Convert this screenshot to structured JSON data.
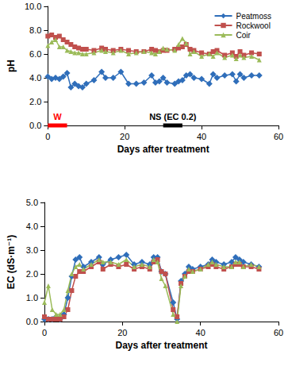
{
  "chart_data": [
    {
      "type": "line",
      "x_label": "Days after treatment",
      "y_label": "pH",
      "xlim": [
        0,
        60
      ],
      "xticks": [
        0,
        20,
        40,
        60
      ],
      "ylim": [
        0,
        10
      ],
      "yticks": [
        {
          "value": 0,
          "label": "0.0"
        },
        {
          "value": 2,
          "label": "2.0"
        },
        {
          "value": 4,
          "label": "4.0"
        },
        {
          "value": 6,
          "label": "6.0"
        },
        {
          "value": 8,
          "label": "8.0"
        },
        {
          "value": 10,
          "label": "10.0"
        }
      ],
      "grid": false,
      "legend": "upper right",
      "x": [
        0,
        1,
        2,
        3,
        4,
        5,
        6,
        7,
        8,
        9,
        10,
        12,
        14,
        15,
        17,
        19,
        21,
        23,
        25,
        27,
        28,
        29,
        30,
        31,
        33,
        34,
        35,
        36,
        37,
        38,
        40,
        42,
        43,
        44,
        46,
        48,
        49,
        50,
        51,
        53,
        55
      ],
      "series": [
        {
          "name": "Peatmoss",
          "color": "#2f6eba",
          "marker": "diamond",
          "values": [
            4.1,
            3.9,
            4.0,
            3.9,
            4.1,
            4.4,
            3.2,
            3.5,
            3.3,
            3.2,
            3.5,
            3.8,
            4.5,
            4.0,
            4.0,
            4.5,
            3.5,
            3.5,
            3.6,
            4.2,
            3.6,
            3.7,
            4.0,
            3.6,
            3.5,
            3.7,
            3.8,
            4.2,
            4.3,
            4.0,
            3.9,
            3.5,
            4.3,
            4.0,
            4.2,
            4.3,
            3.7,
            4.3,
            4.0,
            4.2,
            4.2
          ]
        },
        {
          "name": "Rockwool",
          "color": "#c0504d",
          "marker": "square",
          "values": [
            7.5,
            7.6,
            7.4,
            7.5,
            7.2,
            7.0,
            6.8,
            6.6,
            6.5,
            6.4,
            6.4,
            6.3,
            6.5,
            6.4,
            6.3,
            6.4,
            6.3,
            6.2,
            6.2,
            6.4,
            6.3,
            6.2,
            6.3,
            6.3,
            6.4,
            6.5,
            6.6,
            6.8,
            6.4,
            6.3,
            6.1,
            6.0,
            6.2,
            6.3,
            5.9,
            6.1,
            5.8,
            6.2,
            5.9,
            6.1,
            6.0
          ]
        },
        {
          "name": "Coir",
          "color": "#9bbb59",
          "marker": "triangle",
          "values": [
            6.7,
            7.0,
            7.2,
            6.6,
            6.6,
            6.3,
            6.2,
            6.1,
            6.1,
            6.0,
            6.0,
            6.1,
            6.3,
            6.2,
            6.1,
            6.3,
            6.0,
            6.1,
            6.2,
            6.1,
            6.0,
            6.2,
            6.5,
            6.4,
            6.3,
            6.8,
            7.3,
            6.9,
            6.0,
            6.2,
            5.8,
            6.0,
            5.8,
            6.1,
            5.7,
            5.9,
            5.6,
            5.9,
            5.7,
            5.8,
            5.5
          ]
        }
      ],
      "annotations": [
        {
          "text": "W",
          "x": [
            0,
            5
          ],
          "y": 0,
          "color": "#ff0000"
        },
        {
          "text": "NS (EC 0.2)",
          "x": [
            30,
            35
          ],
          "y": 0,
          "color": "#000000"
        }
      ]
    },
    {
      "type": "line",
      "x_label": "Days after treatment",
      "y_label": "EC (dS·m⁻¹)",
      "xlim": [
        0,
        60
      ],
      "xticks": [
        0,
        20,
        40,
        60
      ],
      "ylim": [
        0,
        5
      ],
      "yticks": [
        {
          "value": 0,
          "label": "0.0"
        },
        {
          "value": 1,
          "label": "1.0"
        },
        {
          "value": 2,
          "label": "2.0"
        },
        {
          "value": 3,
          "label": "3.0"
        },
        {
          "value": 4,
          "label": "4.0"
        },
        {
          "value": 5,
          "label": "5.0"
        }
      ],
      "grid": false,
      "x": [
        0,
        1,
        2,
        3,
        4,
        5,
        6,
        7,
        8,
        9,
        10,
        12,
        14,
        15,
        17,
        19,
        21,
        23,
        25,
        27,
        28,
        29,
        30,
        31,
        33,
        34,
        35,
        36,
        37,
        38,
        40,
        42,
        43,
        44,
        46,
        48,
        49,
        50,
        51,
        53,
        55
      ],
      "series": [
        {
          "name": "Peatmoss",
          "color": "#2f6eba",
          "marker": "diamond",
          "values": [
            0.1,
            0.1,
            0.1,
            0.2,
            0.1,
            0.3,
            1.0,
            1.9,
            2.6,
            2.7,
            2.3,
            2.5,
            2.7,
            2.4,
            2.6,
            2.7,
            2.8,
            2.4,
            2.5,
            2.4,
            2.7,
            2.7,
            2.1,
            2.0,
            0.8,
            0.1,
            1.7,
            2.0,
            2.3,
            2.2,
            2.3,
            2.4,
            2.6,
            2.5,
            2.4,
            2.5,
            2.7,
            2.6,
            2.5,
            2.4,
            2.3
          ]
        },
        {
          "name": "Rockwool",
          "color": "#c0504d",
          "marker": "square",
          "values": [
            0.2,
            0.1,
            0.1,
            0.1,
            0.1,
            0.2,
            0.5,
            1.3,
            1.9,
            2.1,
            2.1,
            2.3,
            2.5,
            2.2,
            2.4,
            2.3,
            2.4,
            2.2,
            2.3,
            2.2,
            2.5,
            2.6,
            2.1,
            2.0,
            0.5,
            0.2,
            1.6,
            1.9,
            2.1,
            2.1,
            2.2,
            2.3,
            2.4,
            2.3,
            2.2,
            2.3,
            2.4,
            2.4,
            2.3,
            2.3,
            2.2
          ]
        },
        {
          "name": "Coir",
          "color": "#9bbb59",
          "marker": "triangle",
          "values": [
            0.8,
            1.5,
            0.5,
            0.3,
            0.3,
            0.5,
            1.3,
            2.0,
            2.3,
            2.4,
            2.2,
            2.4,
            2.6,
            2.5,
            2.5,
            2.4,
            2.6,
            2.3,
            2.4,
            2.3,
            2.6,
            2.5,
            1.8,
            1.5,
            0.3,
            0.0,
            1.5,
            1.9,
            2.2,
            2.1,
            2.2,
            2.4,
            2.5,
            2.4,
            2.3,
            2.3,
            2.5,
            2.5,
            2.3,
            2.4,
            2.3
          ]
        }
      ]
    }
  ]
}
